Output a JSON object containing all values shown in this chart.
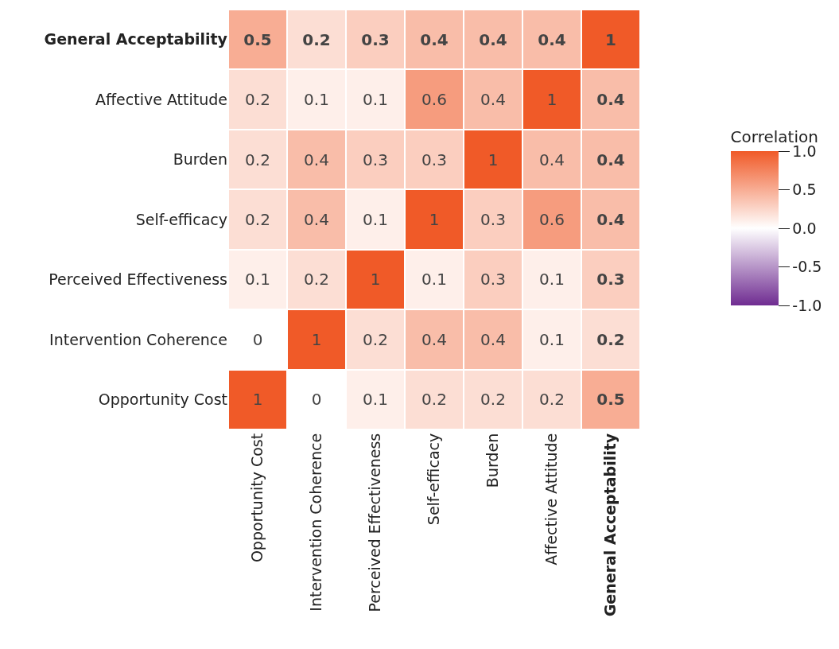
{
  "chart_data": {
    "type": "heatmap",
    "clabel": "Correlation",
    "categories": [
      "Opportunity Cost",
      "Intervention Coherence",
      "Perceived Effectiveness",
      "Self-efficacy",
      "Burden",
      "Affective Attitude",
      "General Acceptability"
    ],
    "y_categories": [
      "General Acceptability",
      "Affective Attitude",
      "Burden",
      "Self-efficacy",
      "Perceived Effectiveness",
      "Intervention Coherence",
      "Opportunity Cost"
    ],
    "cells": [
      [
        0.5,
        0.2,
        0.3,
        0.4,
        0.4,
        0.4,
        1
      ],
      [
        0.2,
        0.1,
        0.1,
        0.6,
        0.4,
        1,
        0.4
      ],
      [
        0.2,
        0.4,
        0.3,
        0.3,
        1,
        0.4,
        0.4
      ],
      [
        0.2,
        0.4,
        0.1,
        1,
        0.3,
        0.6,
        0.4
      ],
      [
        0.1,
        0.2,
        1,
        0.1,
        0.3,
        0.1,
        0.3
      ],
      [
        0,
        1,
        0.2,
        0.4,
        0.4,
        0.1,
        0.2
      ],
      [
        1,
        0,
        0.1,
        0.2,
        0.2,
        0.2,
        0.5
      ]
    ],
    "data_labels": true,
    "clim": [
      -1,
      1
    ],
    "cticks": [
      {
        "value": 1,
        "label": "1.0"
      },
      {
        "value": 0.5,
        "label": "0.5"
      },
      {
        "value": 0,
        "label": "0.0"
      },
      {
        "value": -0.5,
        "label": "-0.5"
      },
      {
        "value": -1,
        "label": "-1.0"
      }
    ]
  }
}
